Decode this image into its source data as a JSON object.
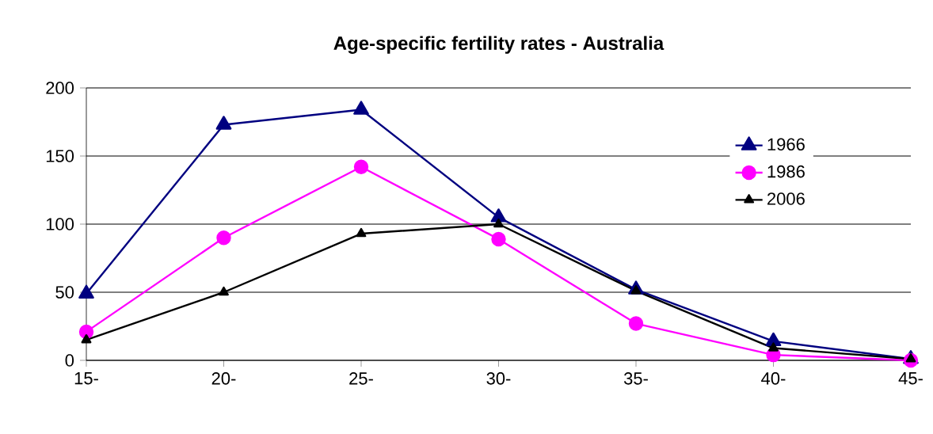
{
  "chart_data": {
    "type": "line",
    "title": "Age-specific fertility rates - Australia",
    "categories": [
      "15-",
      "20-",
      "25-",
      "30-",
      "35-",
      "40-",
      "45-"
    ],
    "series": [
      {
        "name": "1966",
        "color": "#000080",
        "marker": "triangle",
        "values": [
          49,
          173,
          184,
          105,
          52,
          14,
          1
        ]
      },
      {
        "name": "1986",
        "color": "#ff00ff",
        "marker": "circle",
        "values": [
          21,
          90,
          142,
          89,
          27,
          4,
          0
        ]
      },
      {
        "name": "2006",
        "color": "#000000",
        "marker": "triangle",
        "values": [
          15,
          50,
          93,
          100,
          51,
          9,
          1
        ]
      }
    ],
    "ylim": [
      0,
      200
    ],
    "yticks": [
      0,
      50,
      100,
      150,
      200
    ],
    "grid": "y",
    "legend": "top right"
  }
}
